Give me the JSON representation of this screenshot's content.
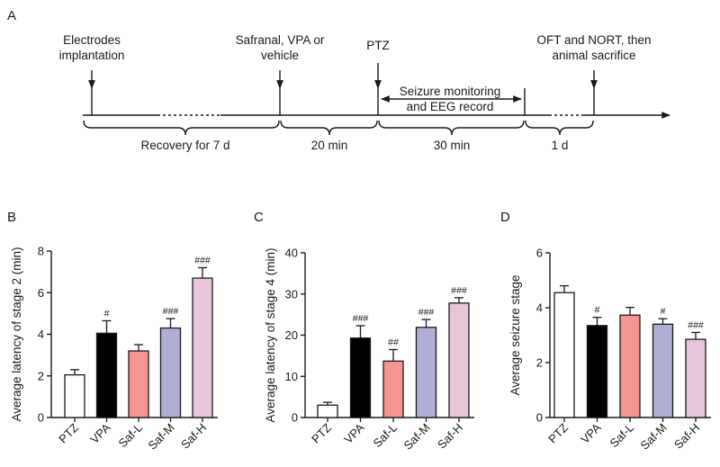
{
  "panels": {
    "a": "A",
    "b": "B",
    "c": "C",
    "d": "D"
  },
  "timeline": {
    "events": [
      {
        "line1": "Electrodes",
        "line2": "implantation"
      },
      {
        "line1": "Safranal, VPA or",
        "line2": "vehicle"
      },
      {
        "line1": "PTZ",
        "line2": ""
      },
      {
        "line1": "OFT and NORT, then",
        "line2": "animal sacrifice"
      }
    ],
    "monitoring": {
      "line1": "Seizure monitoring",
      "line2": "and EEG record"
    },
    "intervals": [
      "Recovery for 7 d",
      "20 min",
      "30 min",
      "1 d"
    ]
  },
  "colors": {
    "PTZ": "#ffffff",
    "VPA": "#000000",
    "Saf-L": "#f4958f",
    "Saf-M": "#aeaed6",
    "Saf-H": "#e8c6da"
  },
  "chart_data": [
    {
      "type": "bar",
      "ylabel": "Average latency of stage 2 (min)",
      "ylim": [
        0,
        8
      ],
      "yticks": [
        0,
        2,
        4,
        6,
        8
      ],
      "categories": [
        "PTZ",
        "VPA",
        "Saf-L",
        "Saf-M",
        "Saf-H"
      ],
      "values": [
        2.05,
        4.05,
        3.2,
        4.3,
        6.7
      ],
      "errors": [
        0.25,
        0.6,
        0.3,
        0.45,
        0.5
      ],
      "significance": [
        "",
        "#",
        "",
        "###",
        "###"
      ]
    },
    {
      "type": "bar",
      "ylabel": "Average latency of stage 4 (min)",
      "ylim": [
        0,
        40
      ],
      "yticks": [
        0,
        10,
        20,
        30,
        40
      ],
      "categories": [
        "PTZ",
        "VPA",
        "Saf-L",
        "Saf-M",
        "Saf-H"
      ],
      "values": [
        3.0,
        19.3,
        13.7,
        21.9,
        27.8
      ],
      "errors": [
        0.7,
        3.0,
        2.8,
        1.9,
        1.3
      ],
      "significance": [
        "",
        "###",
        "##",
        "###",
        "###"
      ]
    },
    {
      "type": "bar",
      "ylabel": "Average seizure stage",
      "ylim": [
        0,
        6
      ],
      "yticks": [
        0,
        2,
        4,
        6
      ],
      "categories": [
        "PTZ",
        "VPA",
        "Saf-L",
        "Saf-M",
        "Saf-H"
      ],
      "values": [
        4.55,
        3.35,
        3.73,
        3.4,
        2.85
      ],
      "errors": [
        0.25,
        0.3,
        0.28,
        0.2,
        0.25
      ],
      "significance": [
        "",
        "#",
        "",
        "#",
        "###"
      ]
    }
  ]
}
